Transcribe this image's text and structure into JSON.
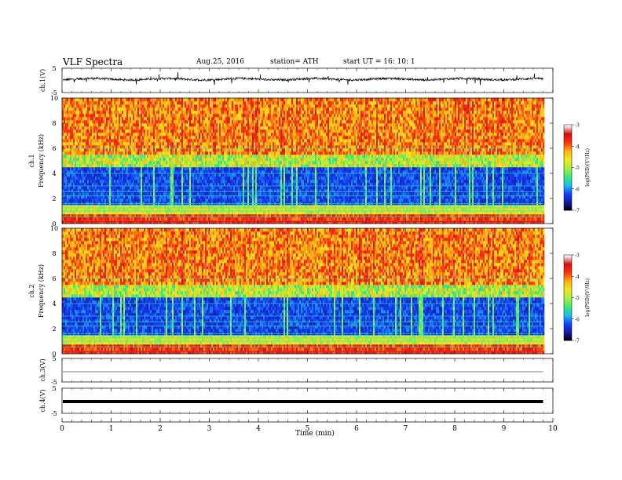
{
  "header": {
    "title": "VLF  Spectra",
    "date": "Aug.25, 2016",
    "station": "station= ATH",
    "start_ut": "start  UT  =    16: 10: 1"
  },
  "colors": {
    "trace": "#000000",
    "colormap": [
      "#000000",
      "#101aa0",
      "#1740ff",
      "#18c0e8",
      "#3ce878",
      "#a8f040",
      "#f0e820",
      "#ffb010",
      "#ff3010",
      "#d21010",
      "#ffffff"
    ]
  },
  "chart_data": [
    {
      "type": "line",
      "panel": "ch1-waveform",
      "ylabel": "ch.1(V)",
      "yticks": [
        "5",
        "-5"
      ],
      "ylim": [
        -5,
        5
      ],
      "xlim": [
        0,
        10
      ],
      "description_level_mean_v": 0.5,
      "grid": false
    },
    {
      "type": "heatmap",
      "panel": "ch1-spectrogram",
      "ylabel": "ch.1",
      "ylabel2": "Frequency  (kHz)",
      "yticks": [
        "0",
        "2",
        "4",
        "6",
        "8",
        "10"
      ],
      "ylim": [
        0,
        10
      ],
      "xlim": [
        0,
        10
      ],
      "colorbar": {
        "label": "log(PSD)(V²/Hz)",
        "ticks": [
          "-3",
          "-4",
          "-5",
          "-6",
          "-7"
        ],
        "range": [
          -7,
          -3
        ]
      },
      "data_end_min": 9.8
    },
    {
      "type": "heatmap",
      "panel": "ch2-spectrogram",
      "ylabel": "ch.2",
      "ylabel2": "Frequency  (kHz)",
      "yticks": [
        "0",
        "2",
        "4",
        "6",
        "8",
        "10"
      ],
      "ylim": [
        0,
        10
      ],
      "xlim": [
        0,
        10
      ],
      "colorbar": {
        "label": "log(PSD)(V²/Hz)",
        "ticks": [
          "-3",
          "-4",
          "-5",
          "-6",
          "-7"
        ],
        "range": [
          -7,
          -3
        ]
      },
      "data_end_min": 9.8
    },
    {
      "type": "line",
      "panel": "ch3-waveform",
      "ylabel": "ch.3(V)",
      "yticks": [
        "5",
        "-5"
      ],
      "ylim": [
        -5,
        5
      ],
      "xlim": [
        0,
        10
      ],
      "description_level_mean_v": 0
    },
    {
      "type": "line",
      "panel": "ch4-waveform",
      "ylabel": "ch.4(V)",
      "yticks": [
        "5",
        "-5"
      ],
      "ylim": [
        -5,
        5
      ],
      "xlim": [
        0,
        10
      ],
      "description_level_mean_v": 0
    }
  ],
  "xaxis": {
    "label": "Time  (min)",
    "ticks": [
      "0",
      "1",
      "2",
      "3",
      "4",
      "5",
      "6",
      "7",
      "8",
      "9",
      "10"
    ]
  }
}
